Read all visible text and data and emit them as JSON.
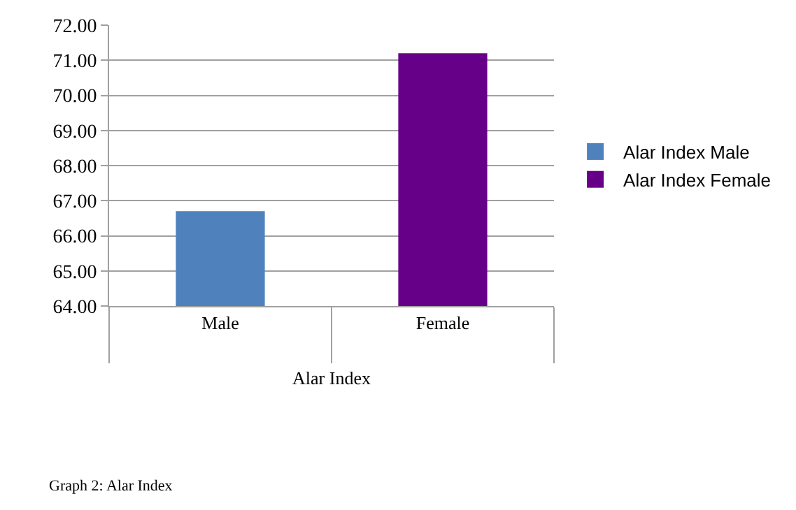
{
  "chart_data": {
    "type": "bar",
    "categories": [
      "Male",
      "Female"
    ],
    "series": [
      {
        "name": "Alar Index Male",
        "color": "#4f81bd",
        "values": [
          66.7,
          null
        ]
      },
      {
        "name": "Alar Index Female",
        "color": "#660088",
        "values": [
          null,
          71.2
        ]
      }
    ],
    "xlabel": "Alar Index",
    "ylim": [
      64,
      72
    ],
    "yticks": [
      {
        "value": 64,
        "label": "64.00"
      },
      {
        "value": 65,
        "label": "65.00"
      },
      {
        "value": 66,
        "label": "66.00"
      },
      {
        "value": 67,
        "label": "67.00"
      },
      {
        "value": 68,
        "label": "68.00"
      },
      {
        "value": 69,
        "label": "69.00"
      },
      {
        "value": 70,
        "label": "70.00"
      },
      {
        "value": 71,
        "label": "71.00"
      },
      {
        "value": 72,
        "label": "72.00"
      }
    ],
    "grid": "y",
    "legend": "right",
    "annotations": [
      "Graph 2: Alar Index"
    ]
  }
}
